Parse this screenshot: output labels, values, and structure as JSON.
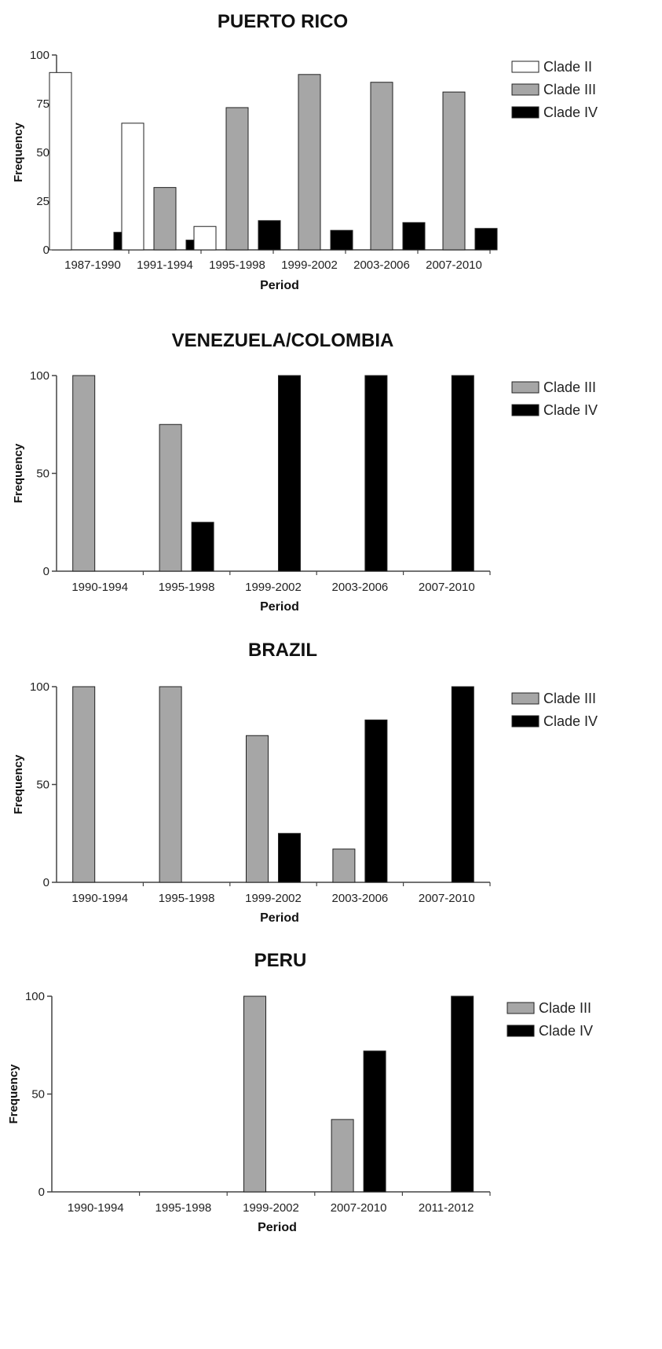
{
  "chart_data": [
    {
      "type": "bar",
      "title": "PUERTO RICO",
      "xlabel": "Period",
      "ylabel": "Frequency",
      "ylim": [
        0,
        100
      ],
      "yticks": [
        0,
        25,
        50,
        75,
        100
      ],
      "legend_position": "top-right",
      "categories": [
        "1987-1990",
        "1991-1994",
        "1995-1998",
        "1999-2002",
        "2003-2006",
        "2007-2010"
      ],
      "series": [
        {
          "name": "Clade II",
          "color": "#ffffff",
          "values": [
            91,
            65,
            12,
            0,
            0,
            0
          ]
        },
        {
          "name": "Clade III",
          "color": "#a6a6a6",
          "values": [
            0,
            32,
            73,
            90,
            86,
            81
          ]
        },
        {
          "name": "Clade IV",
          "color": "#000000",
          "values": [
            9,
            5,
            15,
            10,
            14,
            11
          ]
        }
      ]
    },
    {
      "type": "bar",
      "title": "VENEZUELA/COLOMBIA",
      "xlabel": "Period",
      "ylabel": "Frequency",
      "ylim": [
        0,
        100
      ],
      "yticks": [
        0,
        50,
        100
      ],
      "legend_position": "top-right",
      "categories": [
        "1990-1994",
        "1995-1998",
        "1999-2002",
        "2003-2006",
        "2007-2010"
      ],
      "series": [
        {
          "name": "Clade III",
          "color": "#a6a6a6",
          "values": [
            100,
            75,
            0,
            0,
            0
          ]
        },
        {
          "name": "Clade IV",
          "color": "#000000",
          "values": [
            0,
            25,
            100,
            100,
            100
          ]
        }
      ]
    },
    {
      "type": "bar",
      "title": "BRAZIL",
      "xlabel": "Period",
      "ylabel": "Frequency",
      "ylim": [
        0,
        100
      ],
      "yticks": [
        0,
        50,
        100
      ],
      "legend_position": "top-right",
      "categories": [
        "1990-1994",
        "1995-1998",
        "1999-2002",
        "2003-2006",
        "2007-2010"
      ],
      "series": [
        {
          "name": "Clade III",
          "color": "#a6a6a6",
          "values": [
            100,
            100,
            75,
            17,
            0
          ]
        },
        {
          "name": "Clade IV",
          "color": "#000000",
          "values": [
            0,
            0,
            25,
            83,
            100
          ]
        }
      ]
    },
    {
      "type": "bar",
      "title": "PERU",
      "xlabel": "Period",
      "ylabel": "Frequency",
      "ylim": [
        0,
        100
      ],
      "yticks": [
        0,
        50,
        100
      ],
      "legend_position": "top-right",
      "categories": [
        "1990-1994",
        "1995-1998",
        "1999-2002",
        "2007-2010",
        "2011-2012"
      ],
      "series": [
        {
          "name": "Clade III",
          "color": "#a6a6a6",
          "values": [
            0,
            0,
            100,
            37,
            0
          ]
        },
        {
          "name": "Clade IV",
          "color": "#000000",
          "values": [
            0,
            0,
            0,
            72,
            100
          ]
        }
      ]
    }
  ]
}
